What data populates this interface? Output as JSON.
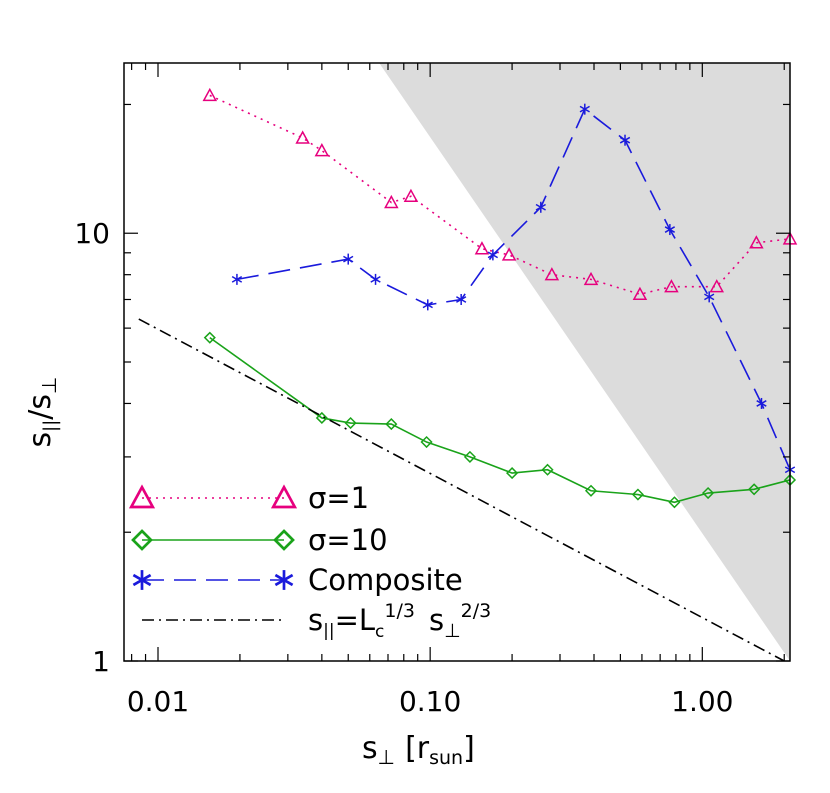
{
  "chart_data": {
    "type": "line",
    "xscale": "log",
    "yscale": "log",
    "xlim": [
      0.0075,
      2.1
    ],
    "ylim": [
      1,
      25
    ],
    "grid": false,
    "legend_position": "bottom-left",
    "xlabel": {
      "main": "s",
      "sub1": "⊥",
      "bracket_open": "[r",
      "sub2": "sun",
      "bracket_close": "]"
    },
    "ylabel": {
      "main1": "s",
      "sub1": "||",
      "slash": "/s",
      "sub2": "⊥"
    },
    "x_tick_labels": [
      {
        "value": 0.01,
        "label": "0.01"
      },
      {
        "value": 0.1,
        "label": "0.10"
      },
      {
        "value": 1.0,
        "label": "1.00"
      }
    ],
    "y_tick_labels": [
      {
        "value": 1,
        "label": "1"
      },
      {
        "value": 10,
        "label": "10"
      }
    ],
    "shaded_region": {
      "color": "#dcdcdc",
      "description_points": [
        [
          0.065,
          25
        ],
        [
          2.1,
          25
        ],
        [
          2.1,
          1
        ]
      ]
    },
    "series": [
      {
        "name": "σ=1",
        "color": "#e6007e",
        "line_style": "dotted",
        "marker": "triangle",
        "x": [
          0.0155,
          0.034,
          0.04,
          0.072,
          0.085,
          0.155,
          0.195,
          0.28,
          0.39,
          0.59,
          0.77,
          1.13,
          1.58,
          2.1
        ],
        "y": [
          21.0,
          16.7,
          15.6,
          11.8,
          12.2,
          9.2,
          8.9,
          8.0,
          7.8,
          7.2,
          7.5,
          7.5,
          9.5,
          9.7
        ]
      },
      {
        "name": "σ=10",
        "color": "#1aa31a",
        "line_style": "solid",
        "marker": "diamond",
        "x": [
          0.0155,
          0.04,
          0.051,
          0.072,
          0.097,
          0.14,
          0.2,
          0.27,
          0.39,
          0.58,
          0.79,
          1.05,
          1.55,
          2.1
        ],
        "y": [
          5.7,
          3.7,
          3.6,
          3.58,
          3.25,
          3.0,
          2.75,
          2.8,
          2.5,
          2.45,
          2.35,
          2.47,
          2.52,
          2.65
        ]
      },
      {
        "name": "Composite",
        "color": "#1a1adc",
        "line_style": "dashed",
        "marker": "asterisk",
        "x": [
          0.0195,
          0.05,
          0.063,
          0.098,
          0.13,
          0.17,
          0.255,
          0.37,
          0.52,
          0.76,
          1.06,
          1.65,
          2.1
        ],
        "y": [
          7.8,
          8.7,
          7.8,
          6.8,
          7.0,
          8.9,
          11.5,
          19.5,
          16.5,
          10.2,
          7.1,
          4.0,
          2.8
        ]
      },
      {
        "name": "s_||=L_c^1/3 s_⊥^2/3",
        "color": "#000000",
        "line_style": "dashdot",
        "marker": "none",
        "x": [
          0.0085,
          2.0
        ],
        "y": [
          6.3,
          1.0
        ]
      }
    ],
    "legend": [
      {
        "series_index": 0,
        "label": "σ=1"
      },
      {
        "series_index": 1,
        "label": "σ=10"
      },
      {
        "series_index": 2,
        "label": "Composite"
      },
      {
        "series_index": 3,
        "label_parts": {
          "a": "s",
          "a_sub": "||",
          "b": "=L",
          "b_sub": "c",
          "b_sup": "1/3",
          "c": "s",
          "c_sub": "⊥",
          "c_sup": "2/3"
        }
      }
    ]
  }
}
